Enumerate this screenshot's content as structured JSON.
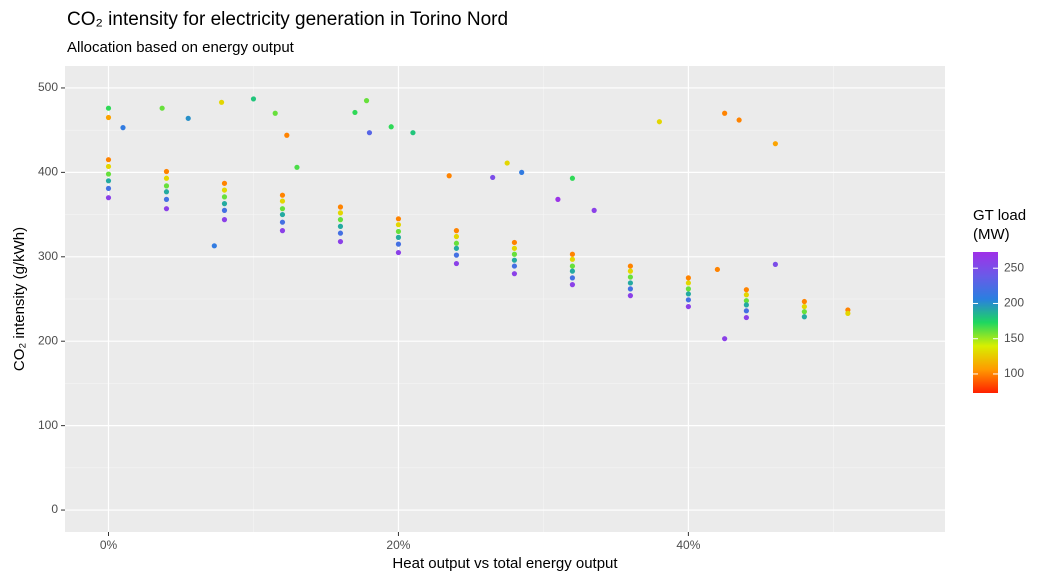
{
  "chart_data": {
    "type": "scatter",
    "title": "CO₂ intensity for electricity generation in Torino Nord",
    "subtitle": "Allocation based on energy output",
    "x_label": "Heat output vs total energy output",
    "y_label": "CO₂ intensity (g/kWh)",
    "xlim": [
      -3,
      57.7
    ],
    "ylim": [
      -26,
      526
    ],
    "xticks": [
      {
        "value": 0,
        "label": "0%"
      },
      {
        "value": 20,
        "label": "20%"
      },
      {
        "value": 40,
        "label": "40%"
      }
    ],
    "xminorticks": [
      10,
      30,
      50
    ],
    "yticks": [
      0,
      100,
      200,
      300,
      400,
      500
    ],
    "yminorticks": [
      50,
      150,
      250,
      350,
      450
    ],
    "grid": true,
    "colorbar_title": [
      "GT load",
      "(MW)"
    ],
    "colorbar_lim": [
      73,
      273
    ],
    "colorbar_ticks": [
      100,
      150,
      200,
      250
    ],
    "colorscale": [
      "#ff2000",
      "#ff9a00",
      "#d8ef00",
      "#1ed760",
      "#2a7fe0",
      "#6a5ae8",
      "#a030e8"
    ],
    "x": [
      0,
      0,
      0,
      0,
      0,
      0,
      4,
      4,
      4,
      4,
      4,
      4,
      8,
      8,
      8,
      8,
      8,
      8,
      12,
      12,
      12,
      12,
      12,
      12,
      16,
      16,
      16,
      16,
      16,
      16,
      20,
      20,
      20,
      20,
      20,
      20,
      24,
      24,
      24,
      24,
      24,
      24,
      28,
      28,
      28,
      28,
      28,
      28,
      32,
      32,
      32,
      32,
      32,
      32,
      36,
      36,
      36,
      36,
      36,
      36,
      40,
      40,
      40,
      40,
      40,
      40,
      44,
      44,
      44,
      44,
      44,
      44,
      48,
      48,
      48,
      48,
      51,
      51,
      0,
      0,
      1,
      3.7,
      5.5,
      7.8,
      10,
      11.5,
      12.3,
      13,
      17,
      17.8,
      18,
      19.5,
      21,
      23.5,
      26.5,
      27.5,
      28.5,
      31,
      32,
      33.5,
      38,
      42.5,
      43.5,
      46,
      46,
      42.5,
      7.3,
      42
    ],
    "y": [
      415,
      407,
      398,
      390,
      381,
      370,
      401,
      393,
      384,
      377,
      368,
      357,
      387,
      379,
      371,
      363,
      355,
      344,
      373,
      366,
      357,
      350,
      341,
      331,
      359,
      352,
      344,
      336,
      328,
      318,
      345,
      338,
      330,
      323,
      315,
      305,
      331,
      324,
      316,
      310,
      302,
      292,
      317,
      310,
      303,
      296,
      289,
      280,
      303,
      297,
      289,
      283,
      275,
      267,
      289,
      283,
      276,
      269,
      262,
      254,
      275,
      269,
      262,
      256,
      249,
      241,
      261,
      255,
      248,
      243,
      236,
      228,
      247,
      241,
      235,
      229,
      237,
      233,
      476,
      465,
      453,
      476,
      464,
      483,
      487,
      470,
      444,
      406,
      471,
      485,
      447,
      454,
      447,
      396,
      394,
      411,
      400,
      368,
      393,
      355,
      460,
      470,
      462,
      434,
      291,
      203,
      313,
      285
    ],
    "color_values": [
      100,
      130,
      160,
      190,
      220,
      260,
      100,
      130,
      160,
      190,
      220,
      260,
      100,
      130,
      160,
      190,
      220,
      260,
      100,
      130,
      160,
      190,
      220,
      260,
      100,
      130,
      160,
      190,
      220,
      260,
      100,
      130,
      160,
      190,
      220,
      260,
      100,
      130,
      160,
      190,
      220,
      260,
      100,
      130,
      160,
      190,
      220,
      260,
      100,
      130,
      160,
      190,
      220,
      260,
      100,
      130,
      160,
      190,
      220,
      260,
      100,
      130,
      160,
      190,
      220,
      260,
      100,
      130,
      160,
      190,
      220,
      260,
      100,
      130,
      160,
      190,
      100,
      130,
      170,
      110,
      210,
      160,
      200,
      130,
      180,
      160,
      100,
      165,
      170,
      160,
      230,
      170,
      180,
      100,
      250,
      130,
      210,
      270,
      170,
      260,
      130,
      100,
      100,
      110,
      250,
      260,
      210,
      100
    ]
  }
}
